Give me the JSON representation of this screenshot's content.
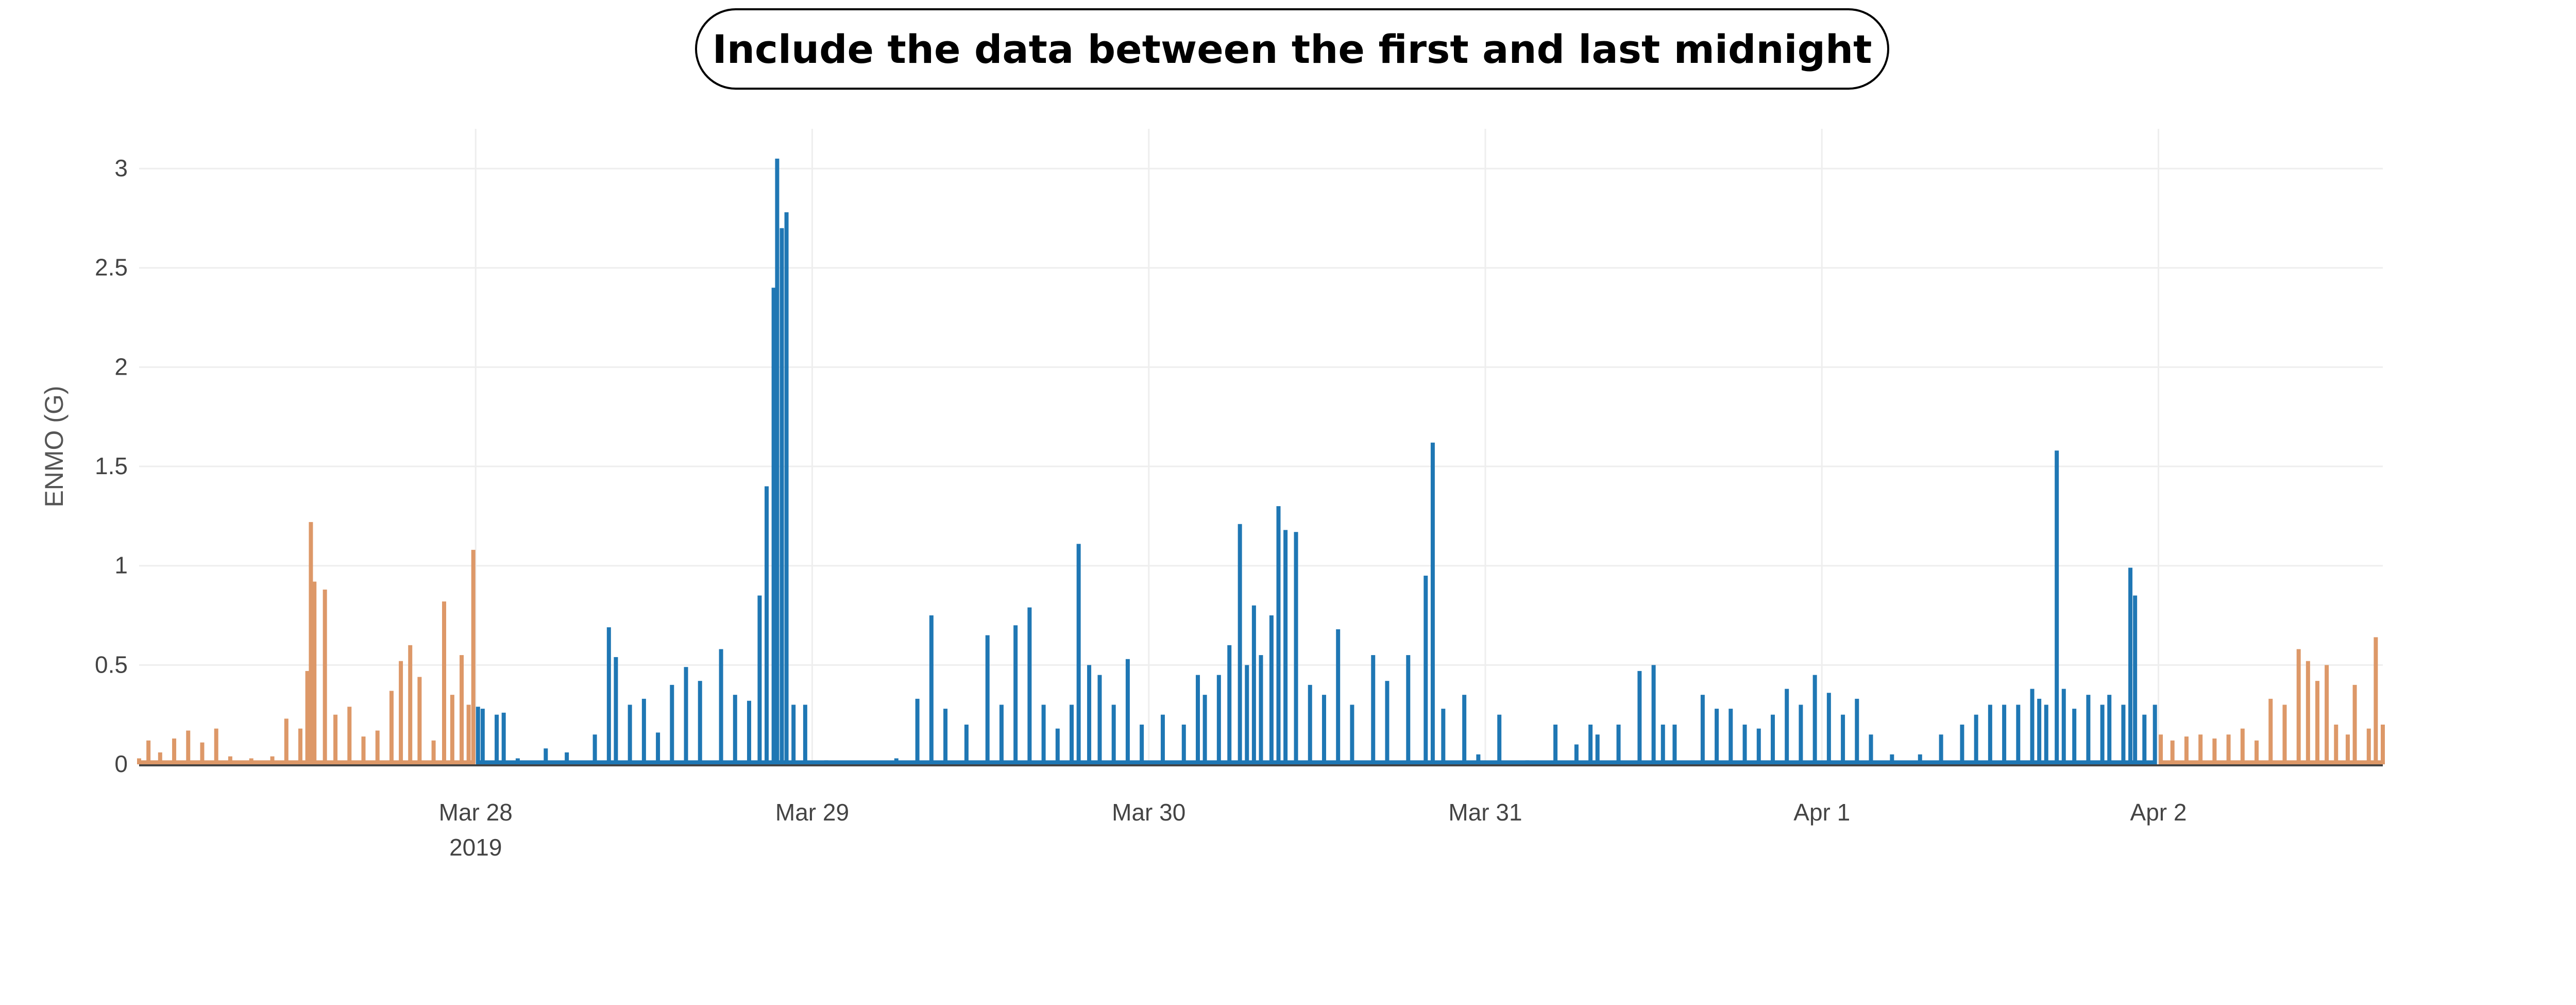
{
  "banner": {
    "text": "Include the data between the first and last midnight"
  },
  "chart_data": {
    "type": "area",
    "title": "",
    "xlabel": "",
    "ylabel": "ENMO (G)",
    "x_range": [
      "2019-03-27 00:00",
      "2019-04-02 16:00"
    ],
    "ylim": [
      0,
      3.2
    ],
    "y_ticks": [
      "0",
      "0.5",
      "1",
      "1.5",
      "2",
      "2.5",
      "3"
    ],
    "x_ticks": [
      {
        "date": "2019-03-28",
        "label": "Mar 28",
        "sublabel": "2019"
      },
      {
        "date": "2019-03-29",
        "label": "Mar 29",
        "sublabel": ""
      },
      {
        "date": "2019-03-30",
        "label": "Mar 30",
        "sublabel": ""
      },
      {
        "date": "2019-03-31",
        "label": "Mar 31",
        "sublabel": ""
      },
      {
        "date": "2019-04-01",
        "label": "Apr 1",
        "sublabel": ""
      },
      {
        "date": "2019-04-02",
        "label": "Apr 2",
        "sublabel": ""
      }
    ],
    "grid": true,
    "legend": "none",
    "colors": {
      "excluded": "#dd9868",
      "included": "#1f77b4",
      "grid": "#eeeeee",
      "baseline": "#444444"
    },
    "series": [
      {
        "style": "excluded",
        "points": [
          [
            "2019-03-27 00:00",
            0.03
          ],
          [
            "2019-03-27 00:40",
            0.12
          ],
          [
            "2019-03-27 01:30",
            0.06
          ],
          [
            "2019-03-27 02:30",
            0.13
          ],
          [
            "2019-03-27 03:30",
            0.17
          ],
          [
            "2019-03-27 04:30",
            0.11
          ],
          [
            "2019-03-27 05:30",
            0.18
          ],
          [
            "2019-03-27 06:30",
            0.04
          ],
          [
            "2019-03-27 08:00",
            0.03
          ],
          [
            "2019-03-27 09:30",
            0.04
          ],
          [
            "2019-03-27 10:30",
            0.23
          ],
          [
            "2019-03-27 11:30",
            0.18
          ],
          [
            "2019-03-27 12:00",
            0.47
          ],
          [
            "2019-03-27 12:15",
            1.22
          ],
          [
            "2019-03-27 12:30",
            0.92
          ],
          [
            "2019-03-27 13:15",
            0.88
          ],
          [
            "2019-03-27 14:00",
            0.25
          ],
          [
            "2019-03-27 15:00",
            0.29
          ],
          [
            "2019-03-27 16:00",
            0.14
          ],
          [
            "2019-03-27 17:00",
            0.17
          ],
          [
            "2019-03-27 18:00",
            0.37
          ],
          [
            "2019-03-27 18:40",
            0.52
          ],
          [
            "2019-03-27 19:20",
            0.6
          ],
          [
            "2019-03-27 20:00",
            0.44
          ],
          [
            "2019-03-27 21:00",
            0.12
          ],
          [
            "2019-03-27 21:45",
            0.82
          ],
          [
            "2019-03-27 22:20",
            0.35
          ],
          [
            "2019-03-27 23:00",
            0.55
          ],
          [
            "2019-03-27 23:30",
            0.3
          ],
          [
            "2019-03-27 23:50",
            1.08
          ]
        ]
      },
      {
        "style": "included",
        "points": [
          [
            "2019-03-28 00:10",
            0.29
          ],
          [
            "2019-03-28 00:30",
            0.28
          ],
          [
            "2019-03-28 01:30",
            0.25
          ],
          [
            "2019-03-28 02:00",
            0.26
          ],
          [
            "2019-03-28 03:00",
            0.03
          ],
          [
            "2019-03-28 05:00",
            0.08
          ],
          [
            "2019-03-28 06:30",
            0.06
          ],
          [
            "2019-03-28 08:30",
            0.15
          ],
          [
            "2019-03-28 09:30",
            0.69
          ],
          [
            "2019-03-28 10:00",
            0.54
          ],
          [
            "2019-03-28 11:00",
            0.3
          ],
          [
            "2019-03-28 12:00",
            0.33
          ],
          [
            "2019-03-28 13:00",
            0.16
          ],
          [
            "2019-03-28 14:00",
            0.4
          ],
          [
            "2019-03-28 15:00",
            0.49
          ],
          [
            "2019-03-28 16:00",
            0.42
          ],
          [
            "2019-03-28 17:30",
            0.58
          ],
          [
            "2019-03-28 18:30",
            0.35
          ],
          [
            "2019-03-28 19:30",
            0.32
          ],
          [
            "2019-03-28 20:15",
            0.85
          ],
          [
            "2019-03-28 20:45",
            1.4
          ],
          [
            "2019-03-28 21:15",
            2.4
          ],
          [
            "2019-03-28 21:30",
            3.05
          ],
          [
            "2019-03-28 21:50",
            2.7
          ],
          [
            "2019-03-28 22:10",
            2.78
          ],
          [
            "2019-03-28 22:40",
            0.3
          ],
          [
            "2019-03-28 23:30",
            0.3
          ],
          [
            "2019-03-29 01:00",
            0.02
          ],
          [
            "2019-03-29 06:00",
            0.03
          ],
          [
            "2019-03-29 07:30",
            0.33
          ],
          [
            "2019-03-29 08:30",
            0.75
          ],
          [
            "2019-03-29 09:30",
            0.28
          ],
          [
            "2019-03-29 11:00",
            0.2
          ],
          [
            "2019-03-29 12:30",
            0.65
          ],
          [
            "2019-03-29 13:30",
            0.3
          ],
          [
            "2019-03-29 14:30",
            0.7
          ],
          [
            "2019-03-29 15:30",
            0.79
          ],
          [
            "2019-03-29 16:30",
            0.3
          ],
          [
            "2019-03-29 17:30",
            0.18
          ],
          [
            "2019-03-29 18:30",
            0.3
          ],
          [
            "2019-03-29 19:00",
            1.11
          ],
          [
            "2019-03-29 19:45",
            0.5
          ],
          [
            "2019-03-29 20:30",
            0.45
          ],
          [
            "2019-03-29 21:30",
            0.3
          ],
          [
            "2019-03-29 22:30",
            0.53
          ],
          [
            "2019-03-29 23:30",
            0.2
          ],
          [
            "2019-03-30 01:00",
            0.25
          ],
          [
            "2019-03-30 02:30",
            0.2
          ],
          [
            "2019-03-30 03:30",
            0.45
          ],
          [
            "2019-03-30 04:00",
            0.35
          ],
          [
            "2019-03-30 05:00",
            0.45
          ],
          [
            "2019-03-30 05:45",
            0.6
          ],
          [
            "2019-03-30 06:30",
            1.21
          ],
          [
            "2019-03-30 07:00",
            0.5
          ],
          [
            "2019-03-30 07:30",
            0.8
          ],
          [
            "2019-03-30 08:00",
            0.55
          ],
          [
            "2019-03-30 08:45",
            0.75
          ],
          [
            "2019-03-30 09:15",
            1.3
          ],
          [
            "2019-03-30 09:45",
            1.18
          ],
          [
            "2019-03-30 10:30",
            1.17
          ],
          [
            "2019-03-30 11:30",
            0.4
          ],
          [
            "2019-03-30 12:30",
            0.35
          ],
          [
            "2019-03-30 13:30",
            0.68
          ],
          [
            "2019-03-30 14:30",
            0.3
          ],
          [
            "2019-03-30 16:00",
            0.55
          ],
          [
            "2019-03-30 17:00",
            0.42
          ],
          [
            "2019-03-30 18:30",
            0.55
          ],
          [
            "2019-03-30 19:45",
            0.95
          ],
          [
            "2019-03-30 20:15",
            1.62
          ],
          [
            "2019-03-30 21:00",
            0.28
          ],
          [
            "2019-03-30 22:30",
            0.35
          ],
          [
            "2019-03-30 23:30",
            0.05
          ],
          [
            "2019-03-31 01:00",
            0.25
          ],
          [
            "2019-03-31 03:00",
            0.02
          ],
          [
            "2019-03-31 05:00",
            0.2
          ],
          [
            "2019-03-31 06:30",
            0.1
          ],
          [
            "2019-03-31 07:30",
            0.2
          ],
          [
            "2019-03-31 08:00",
            0.15
          ],
          [
            "2019-03-31 09:30",
            0.2
          ],
          [
            "2019-03-31 11:00",
            0.47
          ],
          [
            "2019-03-31 12:00",
            0.5
          ],
          [
            "2019-03-31 12:40",
            0.2
          ],
          [
            "2019-03-31 13:30",
            0.2
          ],
          [
            "2019-03-31 15:30",
            0.35
          ],
          [
            "2019-03-31 16:30",
            0.28
          ],
          [
            "2019-03-31 17:30",
            0.28
          ],
          [
            "2019-03-31 18:30",
            0.2
          ],
          [
            "2019-03-31 19:30",
            0.18
          ],
          [
            "2019-03-31 20:30",
            0.25
          ],
          [
            "2019-03-31 21:30",
            0.38
          ],
          [
            "2019-03-31 22:30",
            0.3
          ],
          [
            "2019-03-31 23:30",
            0.45
          ],
          [
            "2019-04-01 00:30",
            0.36
          ],
          [
            "2019-04-01 01:30",
            0.25
          ],
          [
            "2019-04-01 02:30",
            0.33
          ],
          [
            "2019-04-01 03:30",
            0.15
          ],
          [
            "2019-04-01 05:00",
            0.05
          ],
          [
            "2019-04-01 07:00",
            0.05
          ],
          [
            "2019-04-01 08:30",
            0.15
          ],
          [
            "2019-04-01 10:00",
            0.2
          ],
          [
            "2019-04-01 11:00",
            0.25
          ],
          [
            "2019-04-01 12:00",
            0.3
          ],
          [
            "2019-04-01 13:00",
            0.3
          ],
          [
            "2019-04-01 14:00",
            0.3
          ],
          [
            "2019-04-01 15:00",
            0.38
          ],
          [
            "2019-04-01 15:30",
            0.33
          ],
          [
            "2019-04-01 16:00",
            0.3
          ],
          [
            "2019-04-01 16:45",
            1.58
          ],
          [
            "2019-04-01 17:15",
            0.38
          ],
          [
            "2019-04-01 18:00",
            0.28
          ],
          [
            "2019-04-01 19:00",
            0.35
          ],
          [
            "2019-04-01 20:00",
            0.3
          ],
          [
            "2019-04-01 20:30",
            0.35
          ],
          [
            "2019-04-01 21:30",
            0.3
          ],
          [
            "2019-04-01 22:00",
            0.99
          ],
          [
            "2019-04-01 22:20",
            0.85
          ],
          [
            "2019-04-01 23:00",
            0.25
          ],
          [
            "2019-04-01 23:45",
            0.3
          ]
        ]
      },
      {
        "style": "excluded",
        "points": [
          [
            "2019-04-02 00:10",
            0.15
          ],
          [
            "2019-04-02 01:00",
            0.12
          ],
          [
            "2019-04-02 02:00",
            0.14
          ],
          [
            "2019-04-02 03:00",
            0.15
          ],
          [
            "2019-04-02 04:00",
            0.13
          ],
          [
            "2019-04-02 05:00",
            0.15
          ],
          [
            "2019-04-02 06:00",
            0.18
          ],
          [
            "2019-04-02 07:00",
            0.12
          ],
          [
            "2019-04-02 08:00",
            0.33
          ],
          [
            "2019-04-02 09:00",
            0.3
          ],
          [
            "2019-04-02 10:00",
            0.58
          ],
          [
            "2019-04-02 10:40",
            0.52
          ],
          [
            "2019-04-02 11:20",
            0.42
          ],
          [
            "2019-04-02 12:00",
            0.5
          ],
          [
            "2019-04-02 12:40",
            0.2
          ],
          [
            "2019-04-02 13:30",
            0.15
          ],
          [
            "2019-04-02 14:00",
            0.4
          ],
          [
            "2019-04-02 15:00",
            0.18
          ],
          [
            "2019-04-02 15:30",
            0.64
          ],
          [
            "2019-04-02 16:00",
            0.2
          ]
        ]
      }
    ]
  }
}
